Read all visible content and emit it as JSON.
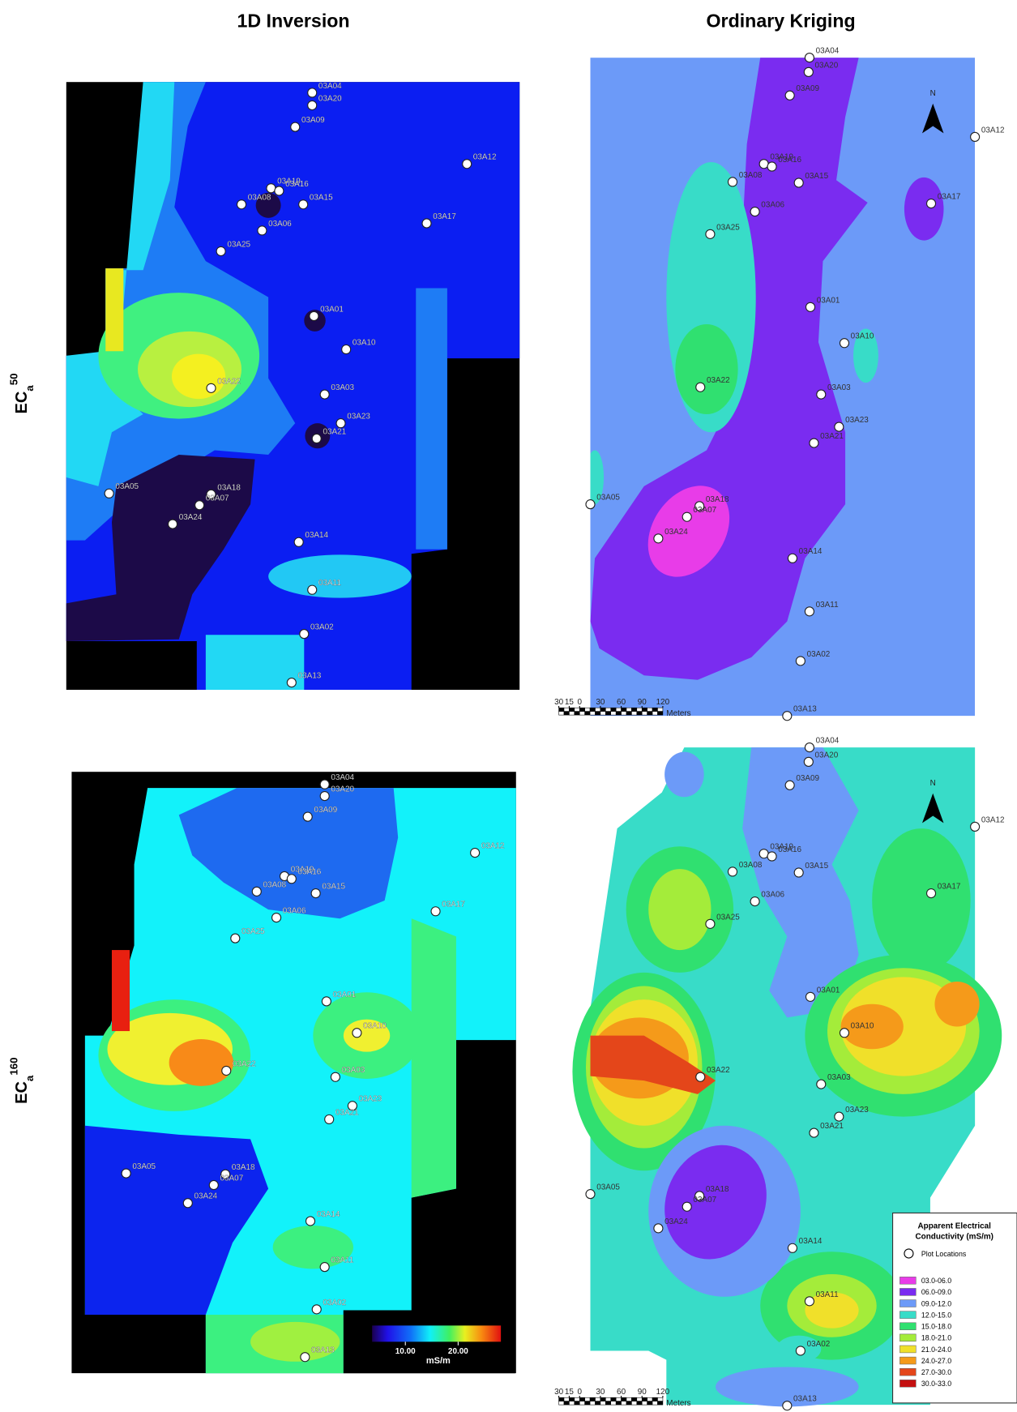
{
  "column_titles": [
    "1D Inversion",
    "Ordinary Kriging"
  ],
  "row_labels": [
    {
      "symbol": "EC",
      "subscript": "a",
      "superscript": "50"
    },
    {
      "symbol": "EC",
      "subscript": "a",
      "superscript": "160"
    }
  ],
  "plot_ids": [
    "03A04",
    "03A20",
    "03A09",
    "03A12",
    "03A19",
    "03A08",
    "03A16",
    "03A15",
    "03A06",
    "03A17",
    "03A25",
    "03A01",
    "03A10",
    "03A22",
    "03A03",
    "03A23",
    "03A21",
    "03A05",
    "03A18",
    "03A07",
    "03A24",
    "03A14",
    "03A11",
    "03A02",
    "03A13"
  ],
  "north_label": "N",
  "scale_bar": {
    "ticks": [
      {
        "value": -30,
        "label": "30"
      },
      {
        "value": -15,
        "label": "15"
      },
      0,
      30,
      60,
      90,
      120
    ],
    "unit": "Meters"
  },
  "colorbar": {
    "range": [
      3.7,
      28.1
    ],
    "ticks": [
      {
        "value": 10,
        "label": "10.00"
      },
      {
        "value": 20,
        "label": "20.00"
      }
    ],
    "unit": "mS/m"
  },
  "legend": {
    "title": [
      "Apparent Electrical",
      "Conductivity (mS/m)"
    ],
    "marker_label": "Plot Locations",
    "classes": [
      {
        "label": "03.0-06.0",
        "color": "#e83ce8"
      },
      {
        "label": "06.0-09.0",
        "color": "#7a2cf0"
      },
      {
        "label": "09.0-12.0",
        "color": "#6c9af8"
      },
      {
        "label": "12.0-15.0",
        "color": "#38dcc8"
      },
      {
        "label": "15.0-18.0",
        "color": "#30e070"
      },
      {
        "label": "18.0-21.0",
        "color": "#a4ec3a"
      },
      {
        "label": "21.0-24.0",
        "color": "#f0e02a"
      },
      {
        "label": "24.0-27.0",
        "color": "#f59a1a"
      },
      {
        "label": "27.0-30.0",
        "color": "#e4461a"
      },
      {
        "label": "30.0-33.0",
        "color": "#c41010"
      }
    ]
  }
}
